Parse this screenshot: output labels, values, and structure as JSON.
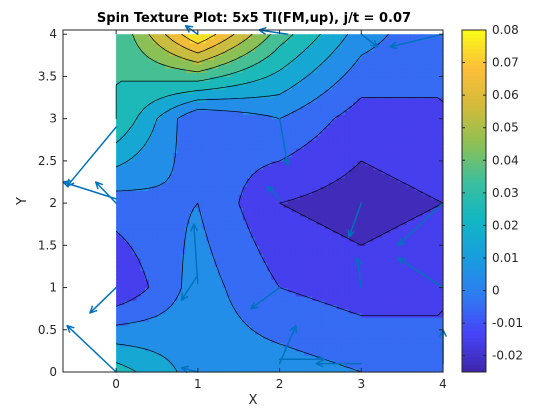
{
  "chart_data": {
    "type": "heatmap",
    "title": "Spin Texture Plot: 5x5 TI(FM,up), j/t = 0.07",
    "xlabel": "X",
    "ylabel": "Y",
    "xlim": [
      -0.65,
      4.0
    ],
    "ylim": [
      0,
      4.05
    ],
    "x_ticks": [
      "0",
      "1",
      "2",
      "3",
      "4"
    ],
    "y_ticks": [
      "0",
      "0.5",
      "1",
      "1.5",
      "2",
      "2.5",
      "3",
      "3.5",
      "4"
    ],
    "grid_x": [
      0,
      1,
      2,
      3,
      4
    ],
    "grid_y": [
      0,
      1,
      2,
      3,
      4
    ],
    "z": [
      [
        0.025,
        0.005,
        0.005,
        0.0,
        -0.01
      ],
      [
        -0.02,
        0.005,
        -0.01,
        -0.015,
        -0.01
      ],
      [
        -0.005,
        0.0,
        -0.02,
        -0.025,
        -0.02
      ],
      [
        0.03,
        -0.01,
        0.0,
        -0.015,
        -0.01
      ],
      [
        0.03,
        0.08,
        0.035,
        0.005,
        -0.01
      ]
    ],
    "contour_levels": [
      -0.02,
      -0.01,
      0,
      0.01,
      0.02,
      0.03,
      0.04,
      0.05,
      0.06,
      0.07
    ],
    "colorbar": {
      "min": -0.025,
      "max": 0.08,
      "ticks": [
        "0.08",
        "0.07",
        "0.06",
        "0.05",
        "0.04",
        "0.03",
        "0.02",
        "0.01",
        "0",
        "-0.01",
        "-0.02"
      ],
      "tick_values": [
        0.08,
        0.07,
        0.06,
        0.05,
        0.04,
        0.03,
        0.02,
        0.01,
        0,
        -0.01,
        -0.02
      ]
    },
    "colors": {
      "arrow": "#0072bd",
      "contour": "#000000",
      "colormap": [
        "#3e26a8",
        "#4743f8",
        "#2f7bf1",
        "#199ddf",
        "#11b6c4",
        "#3bbf9e",
        "#8bc056",
        "#d3bb3b",
        "#fcbe3a",
        "#f9fb15"
      ]
    },
    "arrows": [
      {
        "x": 0,
        "y": 0,
        "u": -0.6,
        "v": 0.55
      },
      {
        "x": 0,
        "y": 1,
        "u": -0.32,
        "v": -0.3
      },
      {
        "x": 0,
        "y": 2,
        "u": -0.25,
        "v": 0.25
      },
      {
        "x": 0,
        "y": 2.05,
        "u": -0.65,
        "v": 0.2
      },
      {
        "x": 0,
        "y": 2.9,
        "u": -0.6,
        "v": -0.7
      },
      {
        "x": 1,
        "y": 1.15,
        "u": -0.2,
        "v": -0.3
      },
      {
        "x": 1,
        "y": 1.05,
        "u": -0.05,
        "v": 0.7
      },
      {
        "x": 1,
        "y": 4,
        "u": -0.15,
        "v": 0.1
      },
      {
        "x": 1,
        "y": 0,
        "u": -0.2,
        "v": 0.05
      },
      {
        "x": 2,
        "y": 0.1,
        "u": 0.2,
        "v": 0.45
      },
      {
        "x": 2,
        "y": 0.15,
        "u": 0.55,
        "v": 0.0
      },
      {
        "x": 2,
        "y": 1.0,
        "u": -0.35,
        "v": -0.25
      },
      {
        "x": 2,
        "y": 2.05,
        "u": -0.15,
        "v": 0.15
      },
      {
        "x": 2,
        "y": 3.0,
        "u": 0.1,
        "v": -0.55
      },
      {
        "x": 2.1,
        "y": 4.0,
        "u": -0.35,
        "v": 0.05
      },
      {
        "x": 3,
        "y": 1.0,
        "u": -0.05,
        "v": 0.35
      },
      {
        "x": 3,
        "y": 2.0,
        "u": -0.15,
        "v": -0.4
      },
      {
        "x": 3,
        "y": 4.0,
        "u": 0.2,
        "v": -0.15
      },
      {
        "x": 3,
        "y": 0.1,
        "u": -0.55,
        "v": 0.0
      },
      {
        "x": 4,
        "y": 0.1,
        "u": 0.0,
        "v": 0.4
      },
      {
        "x": 4,
        "y": 1.0,
        "u": -0.55,
        "v": 0.35
      },
      {
        "x": 4,
        "y": 2.0,
        "u": -0.55,
        "v": -0.5
      },
      {
        "x": 4,
        "y": 4.0,
        "u": -0.65,
        "v": -0.15
      }
    ]
  }
}
